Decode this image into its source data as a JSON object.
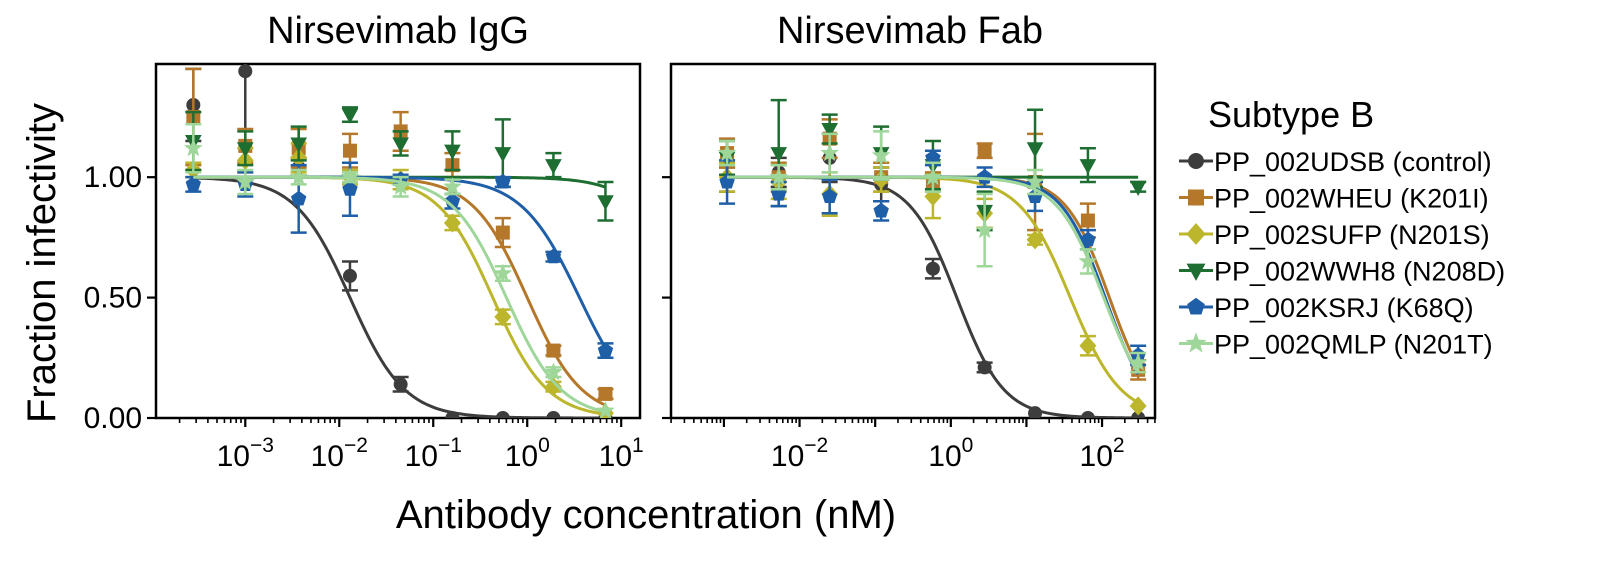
{
  "figure": {
    "ylabel": "Fraction infectivity",
    "xlabel": "Antibody concentration (nM)",
    "legend_title": "Subtype B"
  },
  "series_styles": [
    {
      "name": "PP_002UDSB (control)",
      "color": "#3d3d3d",
      "marker": "circle"
    },
    {
      "name": "PP_002WHEU (K201I)",
      "color": "#b5782a",
      "marker": "square"
    },
    {
      "name": "PP_002SUFP (N201S)",
      "color": "#bcb62c",
      "marker": "diamond"
    },
    {
      "name": "PP_002WWH8 (N208D)",
      "color": "#1e6e32",
      "marker": "triangle-down"
    },
    {
      "name": "PP_002KSRJ (K68Q)",
      "color": "#1f5fa8",
      "marker": "pentagon"
    },
    {
      "name": "PP_002QMLP (N201T)",
      "color": "#9fd69a",
      "marker": "star"
    }
  ],
  "chart_data": [
    {
      "type": "scatter",
      "title": "Nirsevimab IgG",
      "xlabel": "Antibody concentration (nM)",
      "ylabel": "Fraction infectivity",
      "xscale": "log",
      "xlim_log10": [
        -3.95,
        1.2
      ],
      "ylim": [
        0,
        1.47
      ],
      "xticks": [
        {
          "exp": -3,
          "base": "10",
          "power": "−3"
        },
        {
          "exp": -2,
          "base": "10",
          "power": "−2"
        },
        {
          "exp": -1,
          "base": "10",
          "power": "−1"
        },
        {
          "exp": 0,
          "base": "10",
          "power": "0"
        },
        {
          "exp": 1,
          "base": "10",
          "power": "1"
        }
      ],
      "yticks": [
        {
          "value": 0,
          "label": "0.00"
        },
        {
          "value": 0.5,
          "label": "0.50"
        },
        {
          "value": 1.0,
          "label": "1.00"
        }
      ],
      "series": [
        {
          "name": "PP_002UDSB (control)",
          "ic50": 0.013,
          "hill": 1.5,
          "points": [
            [
              0.00028,
              1.3,
              0.15
            ],
            [
              0.001,
              1.44,
              0.45
            ],
            [
              0.0037,
              1.04,
              0.04
            ],
            [
              0.013,
              0.59,
              0.06
            ],
            [
              0.045,
              0.14,
              0.03
            ],
            [
              0.16,
              0.0,
              0.005
            ],
            [
              0.55,
              0.0,
              0.005
            ],
            [
              1.9,
              0.0,
              0.005
            ],
            [
              6.8,
              0.0,
              0.005
            ]
          ]
        },
        {
          "name": "PP_002WHEU (K201I)",
          "ic50": 1.0,
          "hill": 1.5,
          "points": [
            [
              0.00028,
              1.25,
              0.2
            ],
            [
              0.001,
              1.13,
              0.07
            ],
            [
              0.0037,
              1.12,
              0.08
            ],
            [
              0.013,
              1.11,
              0.07
            ],
            [
              0.045,
              1.19,
              0.08
            ],
            [
              0.16,
              1.05,
              0.05
            ],
            [
              0.55,
              0.77,
              0.06
            ],
            [
              1.9,
              0.28,
              0.02
            ],
            [
              6.8,
              0.1,
              0.02
            ]
          ]
        },
        {
          "name": "PP_002SUFP (N201S)",
          "ic50": 0.43,
          "hill": 1.5,
          "points": [
            [
              0.00028,
              1.03,
              0.03
            ],
            [
              0.001,
              1.07,
              0.05
            ],
            [
              0.0037,
              1.08,
              0.06
            ],
            [
              0.013,
              1.0,
              0.03
            ],
            [
              0.045,
              0.99,
              0.04
            ],
            [
              0.16,
              0.81,
              0.03
            ],
            [
              0.55,
              0.42,
              0.03
            ],
            [
              1.9,
              0.13,
              0.02
            ],
            [
              6.8,
              0.02,
              0.01
            ]
          ]
        },
        {
          "name": "PP_002WWH8 (N208D)",
          "ic50": 55,
          "hill": 1.5,
          "points": [
            [
              0.00028,
              1.15,
              0.12
            ],
            [
              0.001,
              1.12,
              0.07
            ],
            [
              0.0037,
              1.14,
              0.07
            ],
            [
              0.013,
              1.26,
              0.03
            ],
            [
              0.045,
              1.14,
              0.05
            ],
            [
              0.16,
              1.11,
              0.08
            ],
            [
              0.55,
              1.1,
              0.14
            ],
            [
              1.9,
              1.05,
              0.05
            ],
            [
              6.8,
              0.9,
              0.08
            ]
          ]
        },
        {
          "name": "PP_002KSRJ (K68Q)",
          "ic50": 3.6,
          "hill": 1.4,
          "points": [
            [
              0.00028,
              0.97,
              0.03
            ],
            [
              0.001,
              0.97,
              0.05
            ],
            [
              0.0037,
              0.91,
              0.14
            ],
            [
              0.013,
              0.95,
              0.11
            ],
            [
              0.045,
              0.99,
              0.02
            ],
            [
              0.16,
              0.9,
              0.03
            ],
            [
              0.55,
              0.98,
              0.02
            ],
            [
              1.9,
              0.67,
              0.02
            ],
            [
              6.8,
              0.28,
              0.03
            ]
          ]
        },
        {
          "name": "PP_002QMLP (N201T)",
          "ic50": 0.6,
          "hill": 1.5,
          "points": [
            [
              0.00028,
              1.12,
              0.1
            ],
            [
              0.001,
              0.98,
              0.05
            ],
            [
              0.0037,
              1.0,
              0.03
            ],
            [
              0.013,
              1.0,
              0.02
            ],
            [
              0.045,
              0.96,
              0.04
            ],
            [
              0.16,
              0.96,
              0.03
            ],
            [
              0.55,
              0.6,
              0.03
            ],
            [
              1.9,
              0.19,
              0.02
            ],
            [
              6.8,
              0.03,
              0.01
            ]
          ]
        }
      ]
    },
    {
      "type": "scatter",
      "title": "Nirsevimab Fab",
      "xlabel": "Antibody concentration (nM)",
      "ylabel": "Fraction infectivity",
      "xscale": "log",
      "xlim_log10": [
        -3.7,
        2.7
      ],
      "ylim": [
        0,
        1.47
      ],
      "xticks": [
        {
          "exp": -2,
          "base": "10",
          "power": "−2"
        },
        {
          "exp": 0,
          "base": "10",
          "power": "0"
        },
        {
          "exp": 2,
          "base": "10",
          "power": "2"
        }
      ],
      "yticks": [
        {
          "value": 0,
          "label": ""
        },
        {
          "value": 0.5,
          "label": ""
        },
        {
          "value": 1.0,
          "label": ""
        }
      ],
      "series": [
        {
          "name": "PP_002UDSB (control)",
          "ic50": 1.2,
          "hill": 1.4,
          "points": [
            [
              0.0011,
              0.99,
              0.05
            ],
            [
              0.0053,
              1.02,
              0.06
            ],
            [
              0.025,
              1.08,
              0.1
            ],
            [
              0.12,
              0.97,
              0.07
            ],
            [
              0.58,
              0.62,
              0.04
            ],
            [
              2.8,
              0.21,
              0.02
            ],
            [
              13,
              0.02,
              0.01
            ],
            [
              65,
              0.0,
              0.005
            ],
            [
              300,
              0.0,
              0.005
            ]
          ]
        },
        {
          "name": "PP_002WHEU (K201I)",
          "ic50": 125,
          "hill": 1.5,
          "points": [
            [
              0.0011,
              1.1,
              0.06
            ],
            [
              0.0053,
              1.0,
              0.06
            ],
            [
              0.025,
              1.16,
              0.08
            ],
            [
              0.12,
              1.0,
              0.06
            ],
            [
              0.58,
              0.98,
              0.04
            ],
            [
              2.8,
              1.11,
              0.03
            ],
            [
              13,
              0.98,
              0.2
            ],
            [
              65,
              0.82,
              0.07
            ],
            [
              300,
              0.2,
              0.04
            ]
          ]
        },
        {
          "name": "PP_002SUFP (N201S)",
          "ic50": 38,
          "hill": 1.3,
          "points": [
            [
              0.0011,
              1.0,
              0.06
            ],
            [
              0.0053,
              0.98,
              0.07
            ],
            [
              0.025,
              0.93,
              0.09
            ],
            [
              0.12,
              0.99,
              0.05
            ],
            [
              0.58,
              0.92,
              0.09
            ],
            [
              2.8,
              0.85,
              0.06
            ],
            [
              13,
              0.74,
              0.02
            ],
            [
              65,
              0.3,
              0.04
            ],
            [
              300,
              0.05,
              0.01
            ]
          ]
        },
        {
          "name": "PP_002WWH8 (N208D)",
          "ic50": 50000,
          "hill": 1.5,
          "points": [
            [
              0.0011,
              1.08,
              0.07
            ],
            [
              0.0053,
              1.1,
              0.22
            ],
            [
              0.025,
              1.2,
              0.06
            ],
            [
              0.12,
              1.1,
              0.11
            ],
            [
              0.58,
              1.05,
              0.1
            ],
            [
              2.8,
              0.86,
              0.08
            ],
            [
              13,
              1.12,
              0.16
            ],
            [
              65,
              1.05,
              0.07
            ],
            [
              300,
              0.96,
              0.02
            ]
          ]
        },
        {
          "name": "PP_002KSRJ (K68Q)",
          "ic50": 110,
          "hill": 1.5,
          "points": [
            [
              0.0011,
              0.98,
              0.09
            ],
            [
              0.0053,
              0.93,
              0.05
            ],
            [
              0.025,
              0.92,
              0.07
            ],
            [
              0.12,
              0.86,
              0.04
            ],
            [
              0.58,
              1.08,
              0.03
            ],
            [
              2.8,
              1.0,
              0.04
            ],
            [
              13,
              0.92,
              0.06
            ],
            [
              65,
              0.74,
              0.04
            ],
            [
              300,
              0.26,
              0.04
            ]
          ]
        },
        {
          "name": "PP_002QMLP (N201T)",
          "ic50": 105,
          "hill": 1.4,
          "points": [
            [
              0.0011,
              1.1,
              0.05
            ],
            [
              0.0053,
              1.0,
              0.05
            ],
            [
              0.025,
              1.1,
              0.08
            ],
            [
              0.12,
              1.09,
              0.1
            ],
            [
              0.58,
              1.0,
              0.06
            ],
            [
              2.8,
              0.78,
              0.15
            ],
            [
              13,
              0.98,
              0.05
            ],
            [
              65,
              0.65,
              0.05
            ],
            [
              300,
              0.23,
              0.04
            ]
          ]
        }
      ]
    }
  ]
}
